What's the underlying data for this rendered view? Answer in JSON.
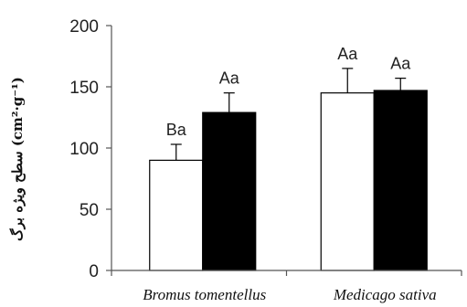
{
  "chart_data": {
    "type": "bar",
    "categories": [
      "Bromus tomentellus",
      "Medicago sativa"
    ],
    "series": [
      {
        "color": "#ffffff",
        "values": [
          90,
          145
        ],
        "errors": [
          13,
          20
        ],
        "labels": [
          "Ba",
          "Aa"
        ]
      },
      {
        "color": "#000000",
        "values": [
          129,
          147
        ],
        "errors": [
          16,
          10
        ],
        "labels": [
          "Aa",
          "Aa"
        ]
      }
    ],
    "ylabel": "سطح ویژه برگ (cm²·g⁻¹)",
    "ylim": [
      0,
      200
    ],
    "yticks": [
      0,
      50,
      100,
      150,
      200
    ],
    "grid": false
  }
}
